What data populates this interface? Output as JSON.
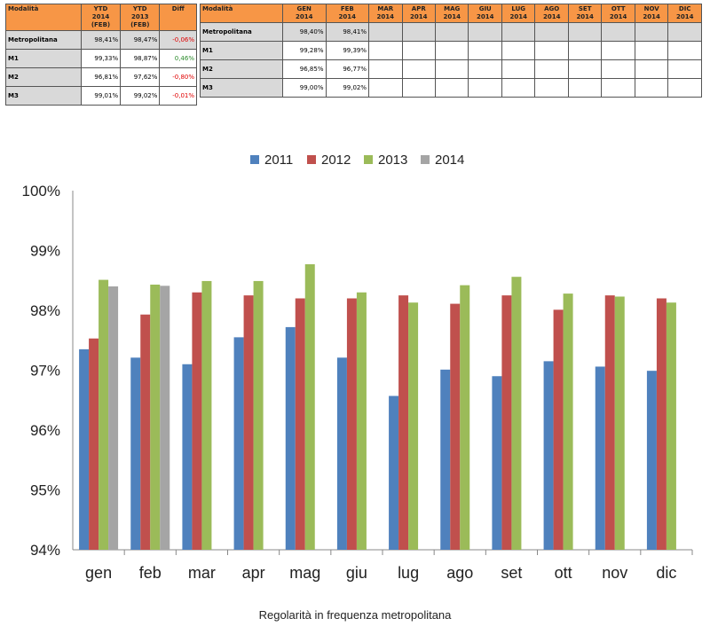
{
  "table_ytd": {
    "headers": [
      "Modalità",
      "YTD 2014 (FEB)",
      "YTD 2013 (FEB)",
      "Diff"
    ],
    "rows": [
      {
        "label": "Metropolitana",
        "ytd2014": "98,41%",
        "ytd2013": "98,47%",
        "diff": "-0,06%",
        "sign": "neg"
      },
      {
        "label": "M1",
        "ytd2014": "99,33%",
        "ytd2013": "98,87%",
        "diff": "0,46%",
        "sign": "pos"
      },
      {
        "label": "M2",
        "ytd2014": "96,81%",
        "ytd2013": "97,62%",
        "diff": "-0,80%",
        "sign": "neg"
      },
      {
        "label": "M3",
        "ytd2014": "99,01%",
        "ytd2013": "99,02%",
        "diff": "-0,01%",
        "sign": "neg"
      }
    ]
  },
  "table_monthly": {
    "headers": [
      "Modalità",
      "GEN 2014",
      "FEB 2014",
      "MAR 2014",
      "APR 2014",
      "MAG 2014",
      "GIU 2014",
      "LUG 2014",
      "AGO 2014",
      "SET 2014",
      "OTT 2014",
      "NOV 2014",
      "DIC 2014"
    ],
    "rows": [
      {
        "label": "Metropolitana",
        "values": [
          "98,40%",
          "98,41%",
          "",
          "",
          "",
          "",
          "",
          "",
          "",
          "",
          "",
          ""
        ]
      },
      {
        "label": "M1",
        "values": [
          "99,28%",
          "99,39%",
          "",
          "",
          "",
          "",
          "",
          "",
          "",
          "",
          "",
          ""
        ]
      },
      {
        "label": "M2",
        "values": [
          "96,85%",
          "96,77%",
          "",
          "",
          "",
          "",
          "",
          "",
          "",
          "",
          "",
          ""
        ]
      },
      {
        "label": "M3",
        "values": [
          "99,00%",
          "99,02%",
          "",
          "",
          "",
          "",
          "",
          "",
          "",
          "",
          "",
          ""
        ]
      }
    ]
  },
  "chart_data": {
    "type": "bar",
    "categories": [
      "gen",
      "feb",
      "mar",
      "apr",
      "mag",
      "giu",
      "lug",
      "ago",
      "set",
      "ott",
      "nov",
      "dic"
    ],
    "series": [
      {
        "name": "2011",
        "color": "#4f81bd",
        "values": [
          97.35,
          97.21,
          97.1,
          97.55,
          97.72,
          97.21,
          96.57,
          97.01,
          96.9,
          97.15,
          97.06,
          96.99
        ]
      },
      {
        "name": "2012",
        "color": "#c0504d",
        "values": [
          97.53,
          97.93,
          98.3,
          98.25,
          98.2,
          98.2,
          98.25,
          98.11,
          98.25,
          98.01,
          98.25,
          98.2
        ]
      },
      {
        "name": "2013",
        "color": "#9bbb59",
        "values": [
          98.51,
          98.43,
          98.49,
          98.49,
          98.77,
          98.3,
          98.13,
          98.42,
          98.56,
          98.28,
          98.23,
          98.13
        ]
      },
      {
        "name": "2014",
        "color": "#a5a5a5",
        "values": [
          98.4,
          98.41,
          null,
          null,
          null,
          null,
          null,
          null,
          null,
          null,
          null,
          null
        ]
      }
    ],
    "ylim": [
      94,
      100
    ],
    "yticks": [
      "94%",
      "95%",
      "96%",
      "97%",
      "98%",
      "99%",
      "100%"
    ],
    "legend_position": "top-center",
    "grid": false,
    "caption": "Regolarità in frequenza metropolitana"
  }
}
